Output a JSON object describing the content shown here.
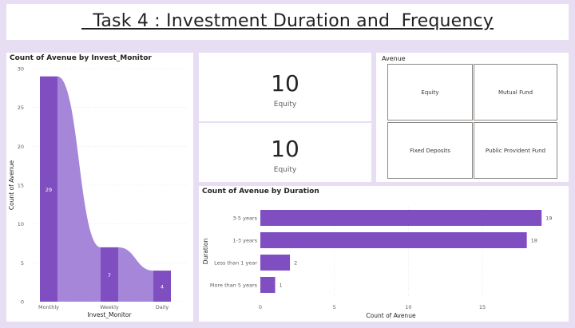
{
  "header": {
    "title": "  Task 4 : Investment Duration and  Frequency"
  },
  "cards": [
    {
      "value": "10",
      "label": "Equity"
    },
    {
      "value": "10",
      "label": "Equity"
    }
  ],
  "slicer": {
    "title": "Avenue",
    "options": [
      "Equity",
      "Mutual Fund",
      "Fixed Deposits",
      "Public Provident Fund"
    ]
  },
  "colors": {
    "primary": "#7f4fc1",
    "ribbon": "#a686d9",
    "page_bg": "#e8def4"
  },
  "chart_data": [
    {
      "type": "bar",
      "style": "ribbon",
      "title": "Count of Avenue by Invest_Monitor",
      "categories": [
        "Monthly",
        "Weekly",
        "Daily"
      ],
      "values": [
        29,
        7,
        4
      ],
      "xlabel": "Invest_Monitor",
      "ylabel": "Count of Avenue",
      "ylim": [
        0,
        30
      ],
      "yticks": [
        0,
        5,
        10,
        15,
        20,
        25,
        30
      ],
      "grid": true
    },
    {
      "type": "bar",
      "orientation": "horizontal",
      "title": "Count of Avenue by Duration",
      "categories": [
        "3-5 years",
        "1-3 years",
        "Less than 1 year",
        "More than 5 years"
      ],
      "values": [
        19,
        18,
        2,
        1
      ],
      "xlabel": "Count of Avenue",
      "ylabel": "Duration",
      "xlim": [
        0,
        19.8
      ],
      "xticks": [
        0,
        5,
        10,
        15
      ],
      "grid": true
    }
  ]
}
